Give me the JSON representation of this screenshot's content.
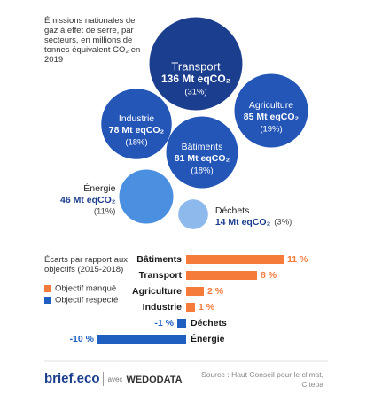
{
  "chart_data": [
    {
      "type": "bubble",
      "title": "Émissions nationales de gaz à effet de serre, par secteurs, en millions de tonnes équivalent CO₂ en 2019",
      "categories": [
        "Transport",
        "Agriculture",
        "Industrie",
        "Bâtiments",
        "Énergie",
        "Déchets"
      ],
      "values": [
        136,
        85,
        78,
        81,
        46,
        14
      ],
      "value_labels": [
        "136 Mt eqCO₂",
        "85 Mt eqCO₂",
        "78 Mt eqCO₂",
        "81 Mt eqCO₂",
        "46 Mt eqCO₂",
        "14 Mt eqCO₂"
      ],
      "shares": [
        31,
        19,
        18,
        18,
        11,
        3
      ],
      "share_labels": [
        "(31%)",
        "(19%)",
        "(18%)",
        "(18%)",
        "(11%)",
        "(3%)"
      ],
      "colors": [
        "#1c3e8e",
        "#2356b7",
        "#2356b7",
        "#2356b7",
        "#4a8fe0",
        "#8db9ec"
      ]
    },
    {
      "type": "bar",
      "title": "Écarts par rapport aux objectifs (2015-2018)",
      "categories": [
        "Bâtiments",
        "Transport",
        "Agriculture",
        "Industrie",
        "Déchets",
        "Énergie"
      ],
      "values": [
        11,
        8,
        2,
        1,
        -1,
        -10
      ],
      "value_labels": [
        "11 %",
        "8 %",
        "2 %",
        "1 %",
        "-1 %",
        "-10 %"
      ],
      "legend": [
        {
          "name": "Objectif manqué",
          "color": "#f47b3a"
        },
        {
          "name": "Objectif respecté",
          "color": "#1f5fbf"
        }
      ]
    }
  ],
  "footer": {
    "brand": "brief.eco",
    "with": "avec",
    "partner": "WEDODATA",
    "source": "Source : Haut Conseil pour le climat, Citepa"
  }
}
